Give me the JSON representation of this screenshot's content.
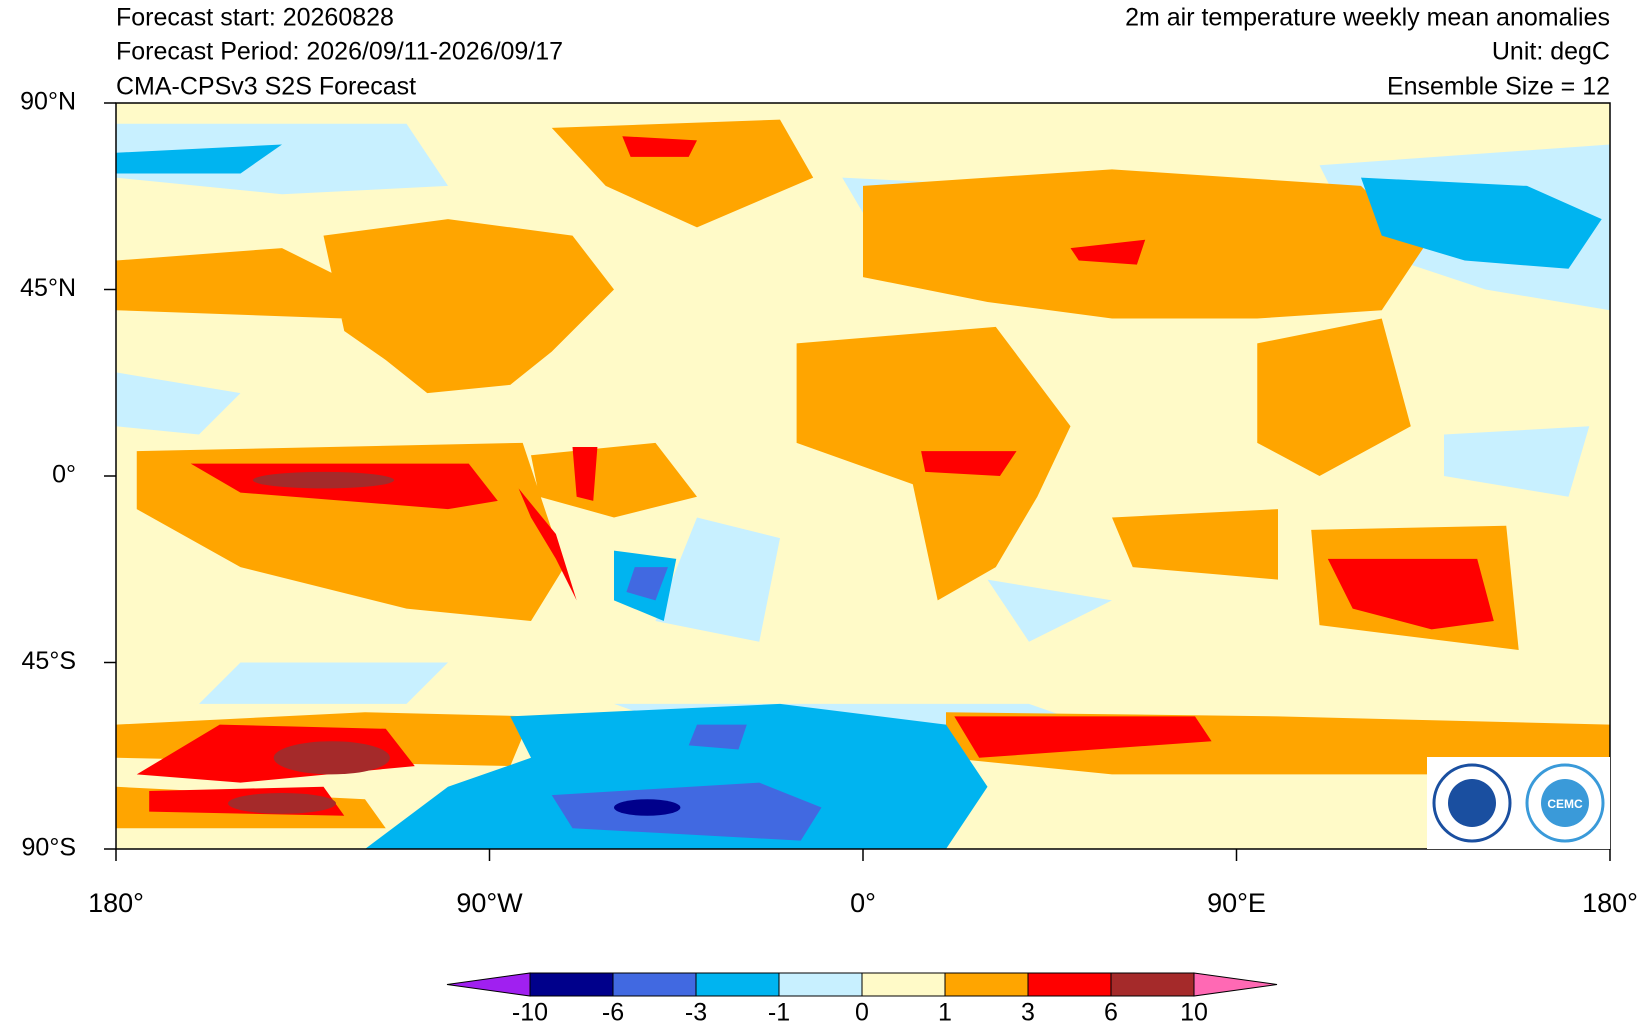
{
  "header": {
    "left": [
      "Forecast start: 20260828",
      "Forecast Period: 2026/09/11-2026/09/17",
      "CMA-CPSv3 S2S Forecast"
    ],
    "right": [
      "2m air temperature weekly mean anomalies",
      "Unit: degC",
      "Ensemble Size = 12"
    ]
  },
  "map": {
    "lon_ticks": [
      {
        "value": -180,
        "label": "180°"
      },
      {
        "value": -90,
        "label": "90°W"
      },
      {
        "value": 0,
        "label": "0°"
      },
      {
        "value": 90,
        "label": "90°E"
      },
      {
        "value": 180,
        "label": "180°"
      }
    ],
    "lat_ticks": [
      {
        "value": 90,
        "label": "90°N"
      },
      {
        "value": 45,
        "label": "45°N"
      },
      {
        "value": 0,
        "label": "0°"
      },
      {
        "value": -45,
        "label": "45°S"
      },
      {
        "value": -90,
        "label": "90°S"
      }
    ]
  },
  "colorbar": {
    "levels": [
      -10,
      -6,
      -3,
      -1,
      0,
      1,
      3,
      6,
      10
    ],
    "colors": [
      "#a020f0",
      "#00008b",
      "#4169e1",
      "#00b4f0",
      "#c8f0ff",
      "#fffac8",
      "#ffa500",
      "#ff0000",
      "#a52a2a",
      "#ff69b4"
    ]
  },
  "logo": {
    "text": "CEMC"
  }
}
